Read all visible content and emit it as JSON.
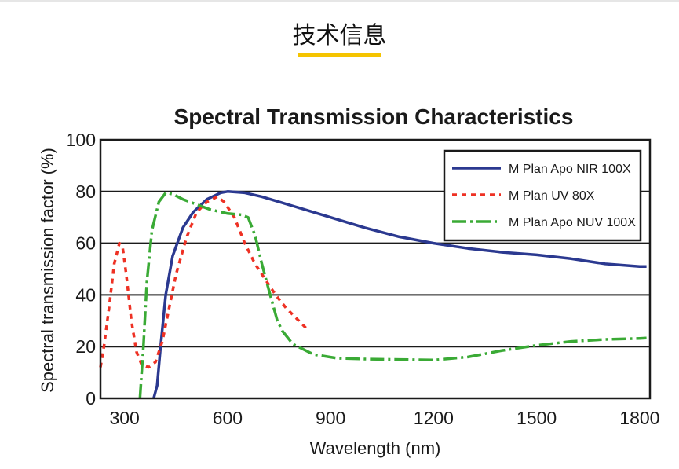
{
  "page": {
    "section_title": "技术信息",
    "accent_color": "#f5c400"
  },
  "chart_data": {
    "type": "line",
    "title": "Spectral Transmission Characteristics",
    "xlabel": "Wavelength (nm)",
    "ylabel": "Spectral transmission factor (%)",
    "xlim": [
      230,
      1830
    ],
    "ylim": [
      0,
      100
    ],
    "xticks": [
      300,
      600,
      900,
      1200,
      1500,
      1800
    ],
    "yticks": [
      0,
      20,
      40,
      60,
      80,
      100
    ],
    "grid": "horizontal",
    "legend_position": "top-right",
    "series": [
      {
        "name": "M Plan Apo NIR 100X",
        "color": "#2b3990",
        "dash": "solid",
        "points": [
          [
            385,
            0
          ],
          [
            395,
            5
          ],
          [
            405,
            20
          ],
          [
            420,
            40
          ],
          [
            440,
            55
          ],
          [
            470,
            66
          ],
          [
            500,
            72
          ],
          [
            540,
            77
          ],
          [
            580,
            79.5
          ],
          [
            600,
            80
          ],
          [
            650,
            79.5
          ],
          [
            700,
            78
          ],
          [
            800,
            74
          ],
          [
            900,
            70
          ],
          [
            1000,
            66
          ],
          [
            1100,
            62.5
          ],
          [
            1200,
            60
          ],
          [
            1300,
            58
          ],
          [
            1400,
            56.5
          ],
          [
            1500,
            55.5
          ],
          [
            1600,
            54
          ],
          [
            1700,
            52
          ],
          [
            1800,
            51
          ],
          [
            1820,
            51
          ]
        ]
      },
      {
        "name": "M Plan UV 80X",
        "color": "#ee3124",
        "dash": "dotted",
        "points": [
          [
            230,
            12
          ],
          [
            240,
            20
          ],
          [
            255,
            35
          ],
          [
            270,
            52
          ],
          [
            285,
            60
          ],
          [
            295,
            58
          ],
          [
            305,
            48
          ],
          [
            320,
            30
          ],
          [
            335,
            18
          ],
          [
            350,
            13
          ],
          [
            370,
            12
          ],
          [
            390,
            14
          ],
          [
            410,
            22
          ],
          [
            430,
            35
          ],
          [
            450,
            48
          ],
          [
            480,
            62
          ],
          [
            510,
            72
          ],
          [
            540,
            76
          ],
          [
            570,
            78
          ],
          [
            590,
            76
          ],
          [
            620,
            70
          ],
          [
            650,
            60
          ],
          [
            680,
            52
          ],
          [
            710,
            46
          ],
          [
            740,
            40
          ],
          [
            770,
            35
          ],
          [
            800,
            31
          ],
          [
            830,
            27
          ]
        ]
      },
      {
        "name": "M Plan Apo NUV 100X",
        "color": "#3aaa35",
        "dash": "dashdot",
        "points": [
          [
            345,
            0
          ],
          [
            355,
            20
          ],
          [
            365,
            45
          ],
          [
            380,
            65
          ],
          [
            400,
            76
          ],
          [
            420,
            79.5
          ],
          [
            440,
            79
          ],
          [
            470,
            77
          ],
          [
            510,
            75
          ],
          [
            550,
            73
          ],
          [
            600,
            71.5
          ],
          [
            640,
            71
          ],
          [
            660,
            70
          ],
          [
            680,
            63
          ],
          [
            700,
            52
          ],
          [
            720,
            42
          ],
          [
            745,
            30
          ],
          [
            760,
            26
          ],
          [
            790,
            21
          ],
          [
            850,
            17
          ],
          [
            920,
            15.5
          ],
          [
            1000,
            15.2
          ],
          [
            1100,
            15
          ],
          [
            1200,
            14.8
          ],
          [
            1300,
            16
          ],
          [
            1400,
            18.5
          ],
          [
            1500,
            20.5
          ],
          [
            1600,
            22
          ],
          [
            1700,
            22.8
          ],
          [
            1800,
            23.2
          ],
          [
            1820,
            23.3
          ]
        ]
      }
    ]
  }
}
